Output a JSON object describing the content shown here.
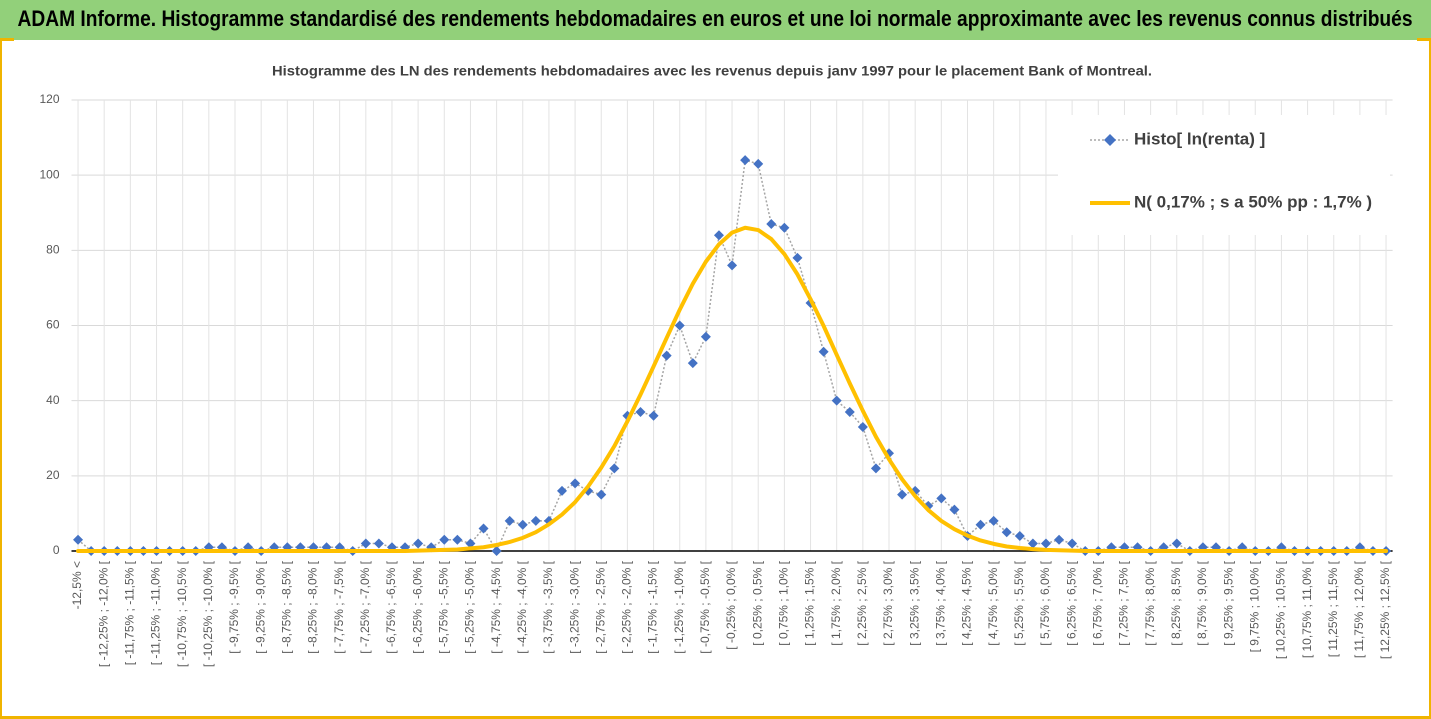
{
  "header": {
    "title": "ADAM Informe. Histogramme standardisé des rendements hebdomadaires en euros et une loi normale approximante avec les revenus connus distribués"
  },
  "chart_data": {
    "type": "line",
    "title": "Histogramme des LN des rendements hebdomadaires avec les revenus depuis janv 1997 pour le placement Bank of Montreal.",
    "categories": [
      "-12,5% <",
      null,
      "[ -12,25% ; -12,0% [",
      null,
      "[ -11,75% ; -11,5% [",
      null,
      "[ -11,25% ; -11,0% [",
      null,
      "[ -10,75% ; -10,5% [",
      null,
      "[ -10,25% ; -10,0% [",
      null,
      "[ -9,75% ; -9,5% [",
      null,
      "[ -9,25% ; -9,0% [",
      null,
      "[ -8,75% ; -8,5% [",
      null,
      "[ -8,25% ; -8,0% [",
      null,
      "[ -7,75% ; -7,5% [",
      null,
      "[ -7,25% ; -7,0% [",
      null,
      "[ -6,75% ; -6,5% [",
      null,
      "[ -6,25% ; -6,0% [",
      null,
      "[ -5,75% ; -5,5% [",
      null,
      "[ -5,25% ; -5,0% [",
      null,
      "[ -4,75% ; -4,5% [",
      null,
      "[ -4,25% ; -4,0% [",
      null,
      "[ -3,75% ; -3,5% [",
      null,
      "[ -3,25% ; -3,0% [",
      null,
      "[ -2,75% ; -2,5% [",
      null,
      "[ -2,25% ; -2,0% [",
      null,
      "[ -1,75% ; -1,5% [",
      null,
      "[ -1,25% ; -1,0% [",
      null,
      "[ -0,75% ; -0,5% [",
      null,
      "[ -0,25% ; 0,0% [",
      null,
      "[ 0,25% ; 0,5% [",
      null,
      "[ 0,75% ; 1,0% [",
      null,
      "[ 1,25% ; 1,5% [",
      null,
      "[ 1,75% ; 2,0% [",
      null,
      "[ 2,25% ; 2,5% [",
      null,
      "[ 2,75% ; 3,0% [",
      null,
      "[ 3,25% ; 3,5% [",
      null,
      "[ 3,75% ; 4,0% [",
      null,
      "[ 4,25% ; 4,5% [",
      null,
      "[ 4,75% ; 5,0% [",
      null,
      "[ 5,25% ; 5,5% [",
      null,
      "[ 5,75% ; 6,0% [",
      null,
      "[ 6,25% ; 6,5% [",
      null,
      "[ 6,75% ; 7,0% [",
      null,
      "[ 7,25% ; 7,5% [",
      null,
      "[ 7,75% ; 8,0% [",
      null,
      "[ 8,25% ; 8,5% [",
      null,
      "[ 8,75% ; 9,0% [",
      null,
      "[ 9,25% ; 9,5% [",
      null,
      "[ 9,75% ; 10,0% [",
      null,
      "[ 10,25% ; 10,5% [",
      null,
      "[ 10,75% ; 11,0% [",
      null,
      "[ 11,25% ; 11,5% [",
      null,
      "[ 11,75% ; 12,0% [",
      null,
      "[ 12,25% ; 12,5% ["
    ],
    "series": [
      {
        "name": "Histo[ ln(renta) ]",
        "color": "#4472c4",
        "line_color": "#a5a5a5",
        "marker": "diamond",
        "values": [
          3,
          0,
          0,
          0,
          0,
          0,
          0,
          0,
          0,
          0,
          1,
          1,
          0,
          1,
          0,
          1,
          1,
          1,
          1,
          1,
          1,
          0,
          2,
          2,
          1,
          1,
          2,
          1,
          3,
          3,
          2,
          6,
          0,
          8,
          7,
          8,
          8,
          16,
          18,
          16,
          15,
          22,
          36,
          37,
          36,
          52,
          60,
          50,
          57,
          84,
          76,
          104,
          103,
          87,
          86,
          78,
          66,
          53,
          40,
          37,
          33,
          22,
          26,
          15,
          16,
          12,
          14,
          11,
          4,
          7,
          8,
          5,
          4,
          2,
          2,
          3,
          2,
          0,
          0,
          1,
          1,
          1,
          0,
          1,
          2,
          0,
          1,
          1,
          0,
          1,
          0,
          0,
          1,
          0,
          0,
          0,
          0,
          0,
          1,
          0,
          0
        ]
      },
      {
        "name": "N( 0,17% ; s a 50% pp : 1,7% )",
        "color": "#ffc000",
        "values": [
          0,
          0,
          0,
          0,
          0,
          0,
          0,
          0,
          0,
          0,
          0,
          0,
          0,
          0,
          0,
          0,
          0,
          0,
          0,
          0,
          0,
          0,
          0,
          0,
          0,
          0,
          0.1,
          0.2,
          0.3,
          0.4,
          0.7,
          1.0,
          1.6,
          2.4,
          3.5,
          5.0,
          7.1,
          9.7,
          13.0,
          17.2,
          22.2,
          27.9,
          34.5,
          41.6,
          49.1,
          56.7,
          64.2,
          71.1,
          77.0,
          81.6,
          84.7,
          86.0,
          85.4,
          83.0,
          79.0,
          73.6,
          67.0,
          59.9,
          52.2,
          44.6,
          37.3,
          30.4,
          24.4,
          19.1,
          14.6,
          10.9,
          8.0,
          5.8,
          4.1,
          2.8,
          1.9,
          1.2,
          0.8,
          0.5,
          0.3,
          0.2,
          0.1,
          0,
          0,
          0,
          0,
          0,
          0,
          0,
          0,
          0,
          0,
          0,
          0,
          0,
          0,
          0,
          0,
          0,
          0,
          0,
          0,
          0,
          0,
          0,
          0
        ]
      }
    ],
    "ylim": [
      0,
      120
    ],
    "yticks": [
      0,
      20,
      40,
      60,
      80,
      100,
      120
    ],
    "grid": true,
    "legend": "top-right"
  }
}
